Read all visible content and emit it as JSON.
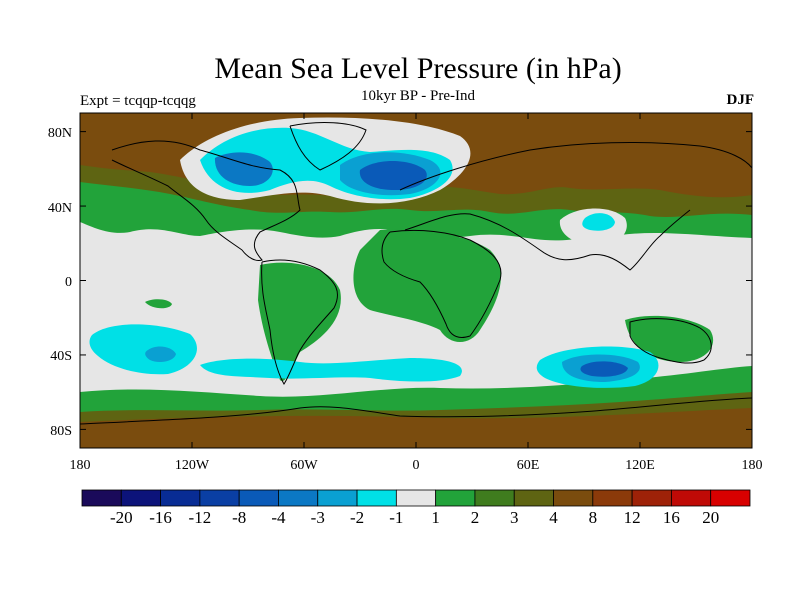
{
  "title": "Mean Sea Level Pressure (in hPa)",
  "subtitle": "10kyr BP - Pre-Ind",
  "experiment_label": "Expt = tcqqp-tcqqg",
  "season": "DJF",
  "axes": {
    "lon_ticks": [
      "180",
      "120W",
      "60W",
      "0",
      "60E",
      "120E",
      "180"
    ],
    "lat_ticks": [
      "80N",
      "40N",
      "0",
      "40S",
      "80S"
    ]
  },
  "colorbar": {
    "colors": [
      "#1a0a5a",
      "#0c137a",
      "#082c94",
      "#0a3fa4",
      "#0a5ab8",
      "#0b78c4",
      "#0aa0d2",
      "#00e0e6",
      "#e6e6e6",
      "#22a33a",
      "#3f7c1e",
      "#5e6412",
      "#7a4c0e",
      "#8b3a0a",
      "#9e2208",
      "#bf0a06",
      "#d80000"
    ],
    "labels": [
      "-20",
      "-16",
      "-12",
      "-8",
      "-4",
      "-3",
      "-2",
      "-1",
      "1",
      "2",
      "3",
      "4",
      "8",
      "12",
      "16",
      "20"
    ]
  },
  "chart_data": {
    "type": "heatmap",
    "variable": "Mean sea level pressure difference",
    "units": "hPa",
    "x_range_deg": [
      -180,
      180
    ],
    "y_range_deg": [
      -90,
      90
    ],
    "contour_levels": [
      -20,
      -16,
      -12,
      -8,
      -4,
      -3,
      -2,
      -1,
      1,
      2,
      3,
      4,
      8,
      12,
      16,
      20
    ],
    "regions": [
      {
        "area": "Arctic high latitudes",
        "level": "3 to 8"
      },
      {
        "area": "North Atlantic / Greenland-Iceland low",
        "level": "-4 to -8"
      },
      {
        "area": "Hudson Bay / Canadian Arctic",
        "level": "-2 to -8"
      },
      {
        "area": "Siberia / Eurasia interior",
        "level": "4 to 8"
      },
      {
        "area": "Tibetan Plateau",
        "level": "-1 to -3"
      },
      {
        "area": "Tropics",
        "level": "-1 to 1"
      },
      {
        "area": "South Pacific",
        "level": "-1 to -4"
      },
      {
        "area": "South Indian Ocean",
        "level": "-2 to -8"
      },
      {
        "area": "Southern Ocean band",
        "level": "2 to 8"
      },
      {
        "area": "Antarctica",
        "level": "4 to 12"
      }
    ]
  }
}
